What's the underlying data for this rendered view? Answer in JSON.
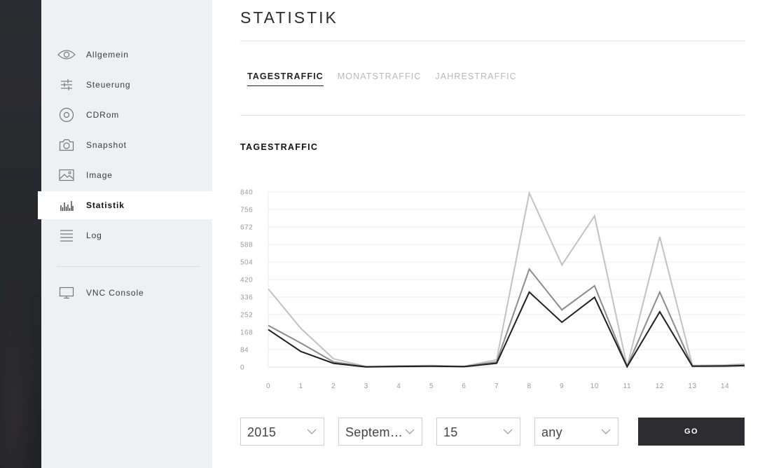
{
  "sidebar": {
    "items": [
      {
        "label": "Allgemein",
        "icon": "eye-icon"
      },
      {
        "label": "Steuerung",
        "icon": "sliders-icon"
      },
      {
        "label": "CDRom",
        "icon": "disc-icon"
      },
      {
        "label": "Snapshot",
        "icon": "camera-icon"
      },
      {
        "label": "Image",
        "icon": "image-icon"
      },
      {
        "label": "Statistik",
        "icon": "bar-chart-icon",
        "active": true
      },
      {
        "label": "Log",
        "icon": "list-icon"
      },
      {
        "label": "VNC Console",
        "icon": "monitor-icon"
      }
    ]
  },
  "main": {
    "title": "STATISTIK",
    "tabs": [
      {
        "label": "TAGESTRAFFIC",
        "active": true
      },
      {
        "label": "MONATSTRAFFIC"
      },
      {
        "label": "JAHRESTRAFFIC"
      }
    ],
    "section_title": "TAGESTRAFFIC"
  },
  "chart_data": {
    "type": "line",
    "title": "",
    "xlabel": "",
    "ylabel": "",
    "x": [
      0,
      1,
      2,
      3,
      4,
      5,
      6,
      7,
      8,
      9,
      10,
      11,
      12,
      13,
      14,
      14.6
    ],
    "x_ticks": [
      0,
      1,
      2,
      3,
      4,
      5,
      6,
      7,
      8,
      9,
      10,
      11,
      12,
      13,
      14
    ],
    "y_ticks": [
      0,
      84,
      168,
      252,
      336,
      420,
      504,
      588,
      672,
      756,
      840
    ],
    "ylim": [
      0,
      840
    ],
    "grid": true,
    "legend": "none",
    "series": [
      {
        "color": "#c2c2c2",
        "values": [
          375,
          185,
          40,
          3,
          6,
          8,
          4,
          35,
          835,
          490,
          725,
          3,
          625,
          8,
          10,
          15
        ]
      },
      {
        "color": "#8a8a8a",
        "values": [
          200,
          115,
          25,
          2,
          4,
          5,
          3,
          25,
          470,
          275,
          390,
          3,
          360,
          5,
          7,
          10
        ]
      },
      {
        "color": "#1e1e1e",
        "values": [
          180,
          75,
          18,
          1,
          3,
          4,
          2,
          18,
          360,
          215,
          335,
          2,
          265,
          4,
          5,
          7
        ]
      }
    ]
  },
  "controls": {
    "year": "2015",
    "month": "September",
    "day": "15",
    "filter": "any",
    "go_label": "GO"
  },
  "colors": {
    "sidebar_bg": "#eff0f2",
    "dark_strip": "#2b2c31",
    "button_bg": "#2d2d31"
  }
}
